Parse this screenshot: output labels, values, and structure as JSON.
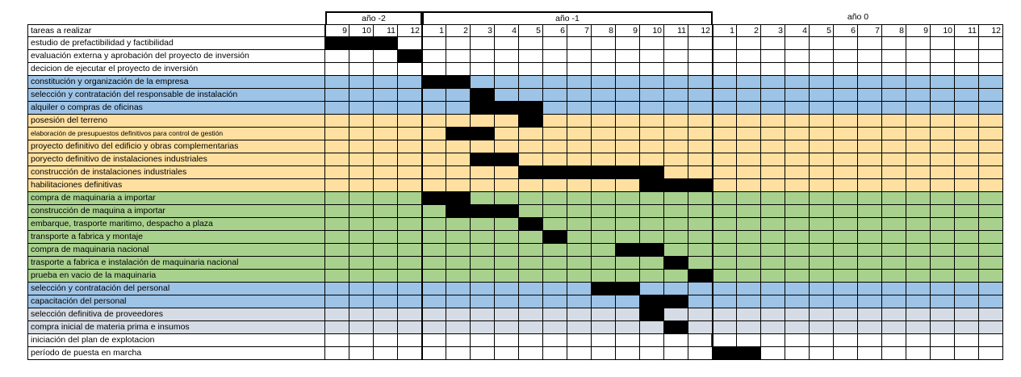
{
  "header": {
    "tasks_label": "tareas a realizar",
    "years": [
      {
        "label": "año -2",
        "start": 0,
        "span": 4,
        "boxed": true
      },
      {
        "label": "año -1",
        "start": 4,
        "span": 12,
        "boxed": true
      },
      {
        "label": "año 0",
        "start": 16,
        "span": 12,
        "boxed": false
      }
    ],
    "months": [
      "9",
      "10",
      "11",
      "12",
      "1",
      "2",
      "3",
      "4",
      "5",
      "6",
      "7",
      "8",
      "9",
      "10",
      "11",
      "12",
      "1",
      "2",
      "3",
      "4",
      "5",
      "6",
      "7",
      "8",
      "9",
      "10",
      "11",
      "12"
    ]
  },
  "colors": {
    "white": "#ffffff",
    "blue": "#9dc3e6",
    "orange": "#ffe0a0",
    "green": "#a9d18e",
    "gray": "#d6dce5",
    "bar": "#000000",
    "milestone": "#e00000"
  },
  "tasks": [
    {
      "label": "estudio de prefactibilidad y factibilidad",
      "color": "white",
      "start": 0,
      "span": 3
    },
    {
      "label": "evaluación externa y aprobación del proyecto de inversión",
      "color": "white",
      "start": 3,
      "span": 1
    },
    {
      "label": "decicion de ejecutar el proyecto de inversión",
      "color": "white",
      "start": null,
      "span": 0
    },
    {
      "label": "constitución y organización de la empresa",
      "color": "blue",
      "start": 4,
      "span": 2
    },
    {
      "label": "selección y contratación del responsable de instalación",
      "color": "blue",
      "start": 6,
      "span": 1
    },
    {
      "label": "alquiler o compras de oficinas",
      "color": "blue",
      "start": 6,
      "span": 3
    },
    {
      "label": "posesión del terreno",
      "color": "orange",
      "start": 8,
      "span": 1
    },
    {
      "label": "elaboración de presupuestos definitivos para control  de gestión",
      "color": "orange",
      "start": 5,
      "span": 2,
      "small": true
    },
    {
      "label": "proyecto definitivo  del edificio y obras complementarias",
      "color": "orange",
      "start": null,
      "span": 0
    },
    {
      "label": "poryecto definitivo de instalaciones industriales",
      "color": "orange",
      "start": 6,
      "span": 2
    },
    {
      "label": "construcción de instalaciones industriales",
      "color": "orange",
      "start": 8,
      "span": 6
    },
    {
      "label": "habilitaciones definitivas",
      "color": "orange",
      "start": 13,
      "span": 3
    },
    {
      "label": "compra de maquinaria a importar",
      "color": "green",
      "start": 4,
      "span": 2
    },
    {
      "label": "construcción de maquina a importar",
      "color": "green",
      "start": 5,
      "span": 3
    },
    {
      "label": "embarque, trasporte maritimo, despacho a plaza",
      "color": "green",
      "start": 8,
      "span": 1
    },
    {
      "label": "transporte a fabrica y montaje",
      "color": "green",
      "start": 9,
      "span": 1
    },
    {
      "label": "compra de maquinaria nacional",
      "color": "green",
      "start": 12,
      "span": 2
    },
    {
      "label": "trasporte a fabrica e instalación de maquinaria nacional",
      "color": "green",
      "start": 14,
      "span": 1
    },
    {
      "label": "prueba en vacio de la maquinaria",
      "color": "green",
      "start": 15,
      "span": 1
    },
    {
      "label": "selección y contratación del personal",
      "color": "blue",
      "start": 11,
      "span": 2
    },
    {
      "label": "capacitación del personal",
      "color": "blue",
      "start": 13,
      "span": 2
    },
    {
      "label": "selección definitiva de proveedores",
      "color": "gray",
      "start": 13,
      "span": 1
    },
    {
      "label": "compra inicial de materia prima e insumos",
      "color": "gray",
      "start": 14,
      "span": 1
    },
    {
      "label": "iniciación del plan de explotacion",
      "color": "white",
      "start": 16,
      "span": 0,
      "milestone": true
    },
    {
      "label": "período de puesta en marcha",
      "color": "white",
      "start": 16,
      "span": 2
    }
  ]
}
